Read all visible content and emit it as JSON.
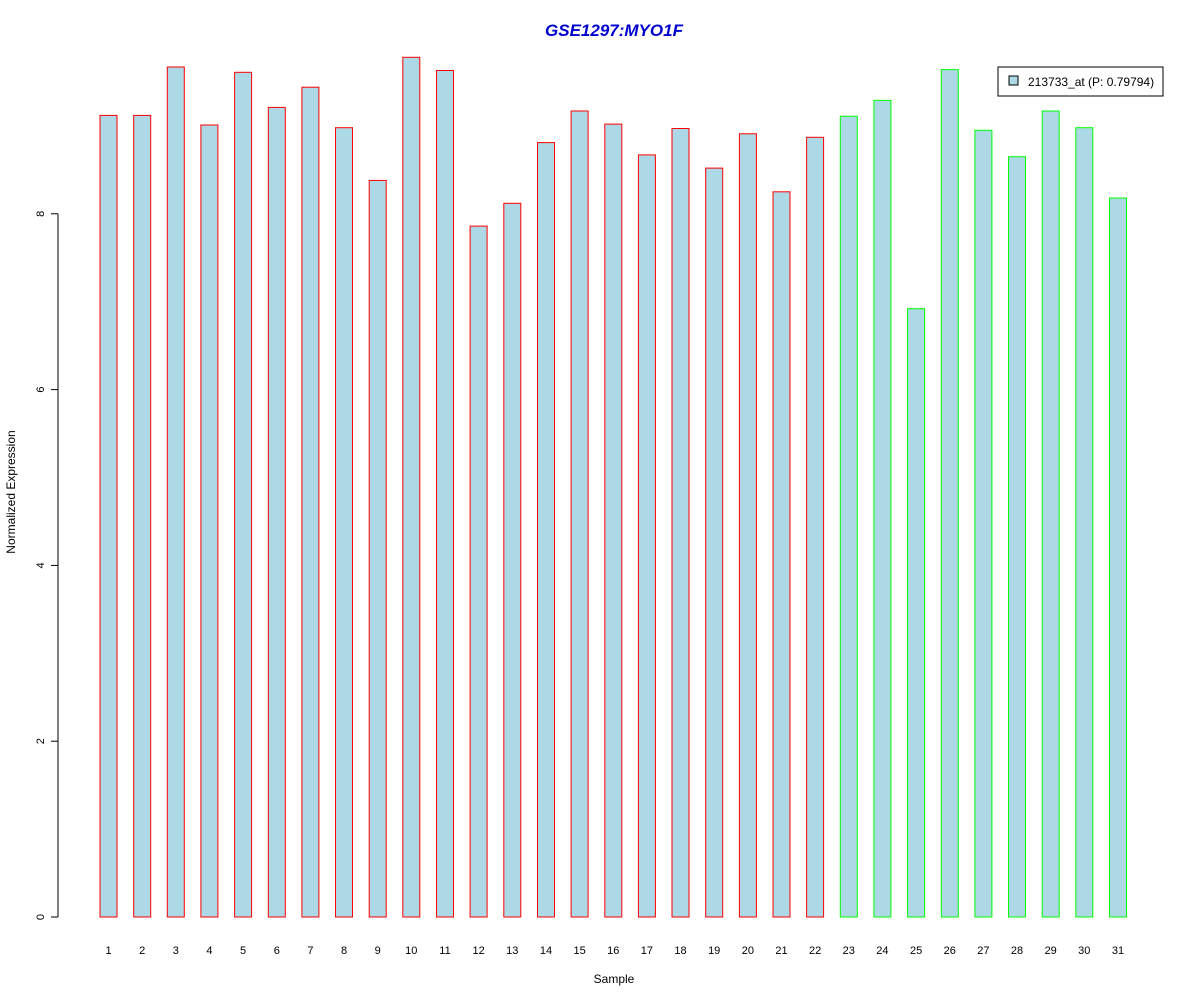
{
  "chart_data": {
    "type": "bar",
    "title": "GSE1297:MYO1F",
    "xlabel": "Sample",
    "ylabel": "Normalized Expression",
    "categories": [
      "1",
      "2",
      "3",
      "4",
      "5",
      "6",
      "7",
      "8",
      "9",
      "10",
      "11",
      "12",
      "13",
      "14",
      "15",
      "16",
      "17",
      "18",
      "19",
      "20",
      "21",
      "22",
      "23",
      "24",
      "25",
      "26",
      "27",
      "28",
      "29",
      "30",
      "31"
    ],
    "series": [
      {
        "name": "213733_at (P: 0.79794)",
        "values": [
          9.12,
          9.12,
          9.67,
          9.01,
          9.61,
          9.21,
          9.44,
          8.98,
          8.38,
          9.78,
          9.63,
          7.86,
          8.12,
          8.81,
          9.17,
          9.02,
          8.67,
          8.97,
          8.52,
          8.91,
          8.25,
          8.87,
          9.11,
          9.29,
          6.92,
          9.64,
          8.95,
          8.65,
          9.17,
          8.98,
          8.18
        ]
      }
    ],
    "groups": [
      {
        "samples": [
          1,
          2,
          3,
          4,
          5,
          6,
          7,
          8,
          9,
          10,
          11,
          12,
          13,
          14,
          15,
          16,
          17,
          18,
          19,
          20,
          21,
          22
        ],
        "border_color": "#ff0000"
      },
      {
        "samples": [
          23,
          24,
          25,
          26,
          27,
          28,
          29,
          30,
          31
        ],
        "border_color": "#00ff00"
      }
    ],
    "bar_fill": "#add8e6",
    "title_color": "#0000cd",
    "yticks": [
      0,
      2,
      4,
      6,
      8
    ],
    "ylim": [
      0,
      9.8
    ],
    "legend_position": "top-right",
    "grid": false
  }
}
